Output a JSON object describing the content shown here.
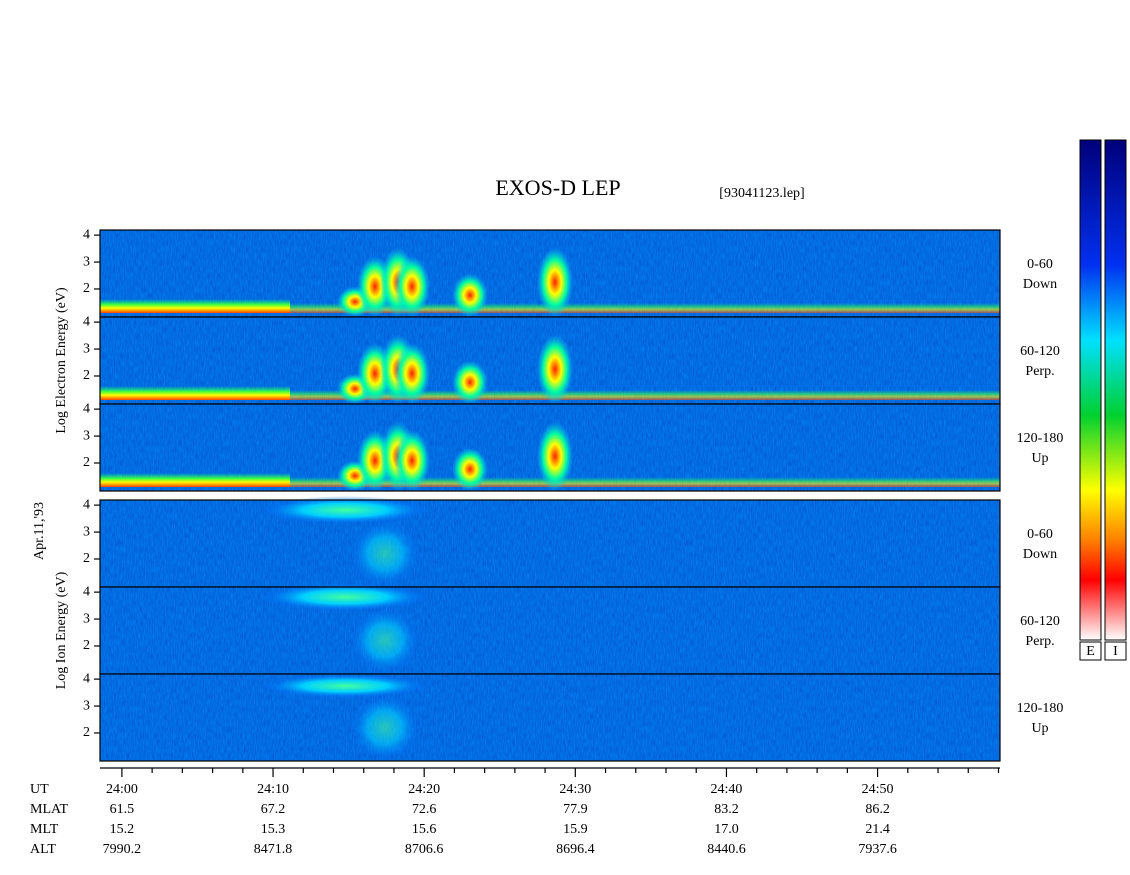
{
  "chart_data": {
    "type": "spectrogram",
    "title": "EXOS-D LEP",
    "subtitle": "[93041123.lep]",
    "date_label": "Apr.11,'93",
    "x_label": "UT",
    "xlim": [
      -1.45,
      58.1
    ],
    "xticks": [
      {
        "value": 0,
        "label": "24:00"
      },
      {
        "value": 10,
        "label": "24:10"
      },
      {
        "value": 20,
        "label": "24:20"
      },
      {
        "value": 30,
        "label": "24:30"
      },
      {
        "value": 40,
        "label": "24:40"
      },
      {
        "value": 50,
        "label": "24:50"
      }
    ],
    "xminorticks": [
      2,
      4,
      6,
      8,
      12,
      14,
      16,
      18,
      22,
      24,
      26,
      28,
      32,
      34,
      36,
      38,
      42,
      44,
      46,
      48,
      52,
      54,
      56,
      58
    ],
    "groups": [
      {
        "label": "Log Electron Energy (eV)",
        "colorbar": "E",
        "panels": [
          {
            "label": [
              "0-60",
              "Down"
            ],
            "ylim": [
              0.96,
              4.19
            ],
            "yticks": [
              2,
              3,
              4
            ]
          },
          {
            "label": [
              "60-120",
              "Perp."
            ],
            "ylim": [
              0.96,
              4.19
            ],
            "yticks": [
              2,
              3,
              4
            ]
          },
          {
            "label": [
              "120-180",
              "Up"
            ],
            "ylim": [
              0.96,
              4.19
            ],
            "yticks": [
              2,
              3,
              4
            ]
          }
        ]
      },
      {
        "label": "Log Ion Energy (eV)",
        "colorbar": "I",
        "panels": [
          {
            "label": [
              "0-60",
              "Down"
            ],
            "ylim": [
              0.96,
              4.19
            ],
            "yticks": [
              2,
              3,
              4
            ]
          },
          {
            "label": [
              "60-120",
              "Perp."
            ],
            "ylim": [
              0.96,
              4.19
            ],
            "yticks": [
              2,
              3,
              4
            ]
          },
          {
            "label": [
              "120-180",
              "Up"
            ],
            "ylim": [
              0.96,
              4.19
            ],
            "yticks": [
              2,
              3,
              4
            ]
          }
        ]
      }
    ],
    "table": [
      {
        "label": "MLAT",
        "values": [
          "61.5",
          "67.2",
          "72.6",
          "77.9",
          "83.2",
          "86.2"
        ]
      },
      {
        "label": "MLT",
        "values": [
          "15.2",
          "15.3",
          "15.6",
          "15.9",
          "17.0",
          "21.4"
        ]
      },
      {
        "label": "ALT",
        "values": [
          "7990.2",
          "8471.8",
          "8706.6",
          "8696.4",
          "8440.6",
          "7937.6"
        ]
      }
    ]
  }
}
